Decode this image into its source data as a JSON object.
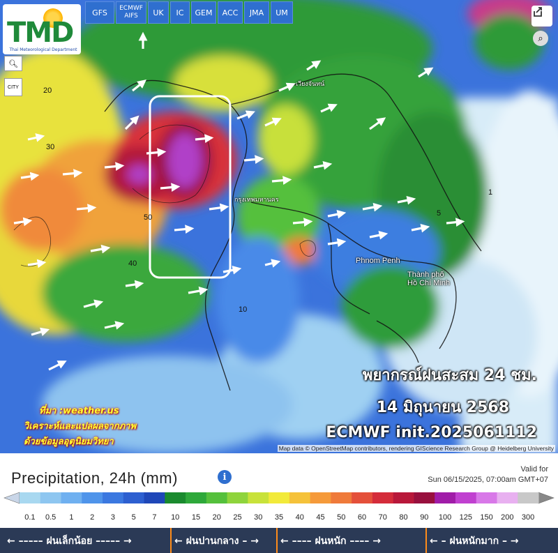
{
  "header": {
    "logo_text": "TMD",
    "logo_subtitle": "Thai Meteorological Department"
  },
  "models": [
    "GFS",
    "ECMWF AIFS",
    "UK",
    "IC",
    "GEM",
    "ACC",
    "JMA",
    "UM"
  ],
  "map_controls": {
    "search_icon": "search-icon",
    "city_label": "CITY",
    "share_icon": "share-icon",
    "zoom_icon": "zoom-icon"
  },
  "map": {
    "city_labels": [
      "Phnom Penh",
      "Thành phố Hồ Chí Minh",
      "กรุงเทพมหานคร",
      "เวียงจันทน์"
    ],
    "contour_labels": [
      "20",
      "30",
      "10",
      "50",
      "40",
      "5",
      "1"
    ],
    "attribution": "Map data © OpenStreetMap contributors, rendering GIScience Research Group @ Heidelberg University"
  },
  "headline": {
    "line1": "พยากรณ์ฝนสะสม 24 ชม.",
    "line2": "14 มิถุนายน 2568",
    "line3": "ECMWF init.2025061112"
  },
  "source": {
    "line1": "ที่มา :weather.us",
    "line2": "วิเคราะห์และแปลผลจากภาพ",
    "line3": "ด้วยข้อมูลอุตุนิยมวิทยา"
  },
  "legend": {
    "title": "Precipitation, 24h (mm)",
    "valid_label": "Valid for",
    "valid_date": "Sun 06/15/2025, 07:00am GMT+07",
    "ticks": [
      "0.1",
      "0.5",
      "1",
      "2",
      "3",
      "5",
      "7",
      "10",
      "15",
      "20",
      "25",
      "30",
      "35",
      "40",
      "45",
      "50",
      "60",
      "70",
      "80",
      "90",
      "100",
      "125",
      "150",
      "200",
      "300"
    ],
    "colors": [
      "#a8d8f0",
      "#8ec6f0",
      "#6fb0f0",
      "#4f94ea",
      "#3b78e0",
      "#2d5fd0",
      "#1f47b8",
      "#1a8a2e",
      "#2ea83a",
      "#55c03c",
      "#8fd43c",
      "#c8e23a",
      "#f2ea3a",
      "#f5c23a",
      "#f59a3a",
      "#ef7a3a",
      "#e4503a",
      "#d42c3a",
      "#b8183a",
      "#98103e",
      "#a01ca8",
      "#c040d0",
      "#d878e8",
      "#e8b0f0",
      "#c8c8c8"
    ],
    "categories": [
      {
        "label": "ฝนเล็กน้อย"
      },
      {
        "label": "ฝนปานกลาง"
      },
      {
        "label": "ฝนหนัก"
      },
      {
        "label": "ฝนหนักมาก"
      }
    ]
  }
}
